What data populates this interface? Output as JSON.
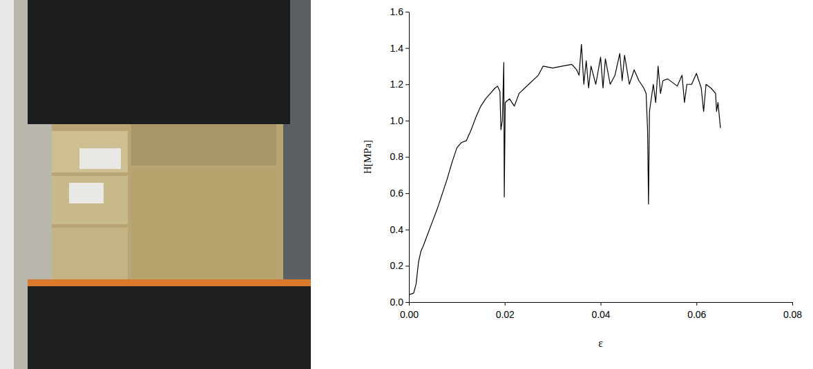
{
  "chart_data": {
    "type": "line",
    "x_label": "ε",
    "y_label": "H[MPa]",
    "x": [
      0.0,
      0.001,
      0.0015,
      0.002,
      0.0025,
      0.003,
      0.004,
      0.005,
      0.006,
      0.007,
      0.008,
      0.009,
      0.01,
      0.011,
      0.012,
      0.013,
      0.014,
      0.015,
      0.016,
      0.017,
      0.018,
      0.0185,
      0.019,
      0.0192,
      0.0195,
      0.0198,
      0.0199,
      0.0201,
      0.021,
      0.022,
      0.023,
      0.025,
      0.027,
      0.028,
      0.03,
      0.032,
      0.034,
      0.035,
      0.0355,
      0.036,
      0.0365,
      0.037,
      0.0375,
      0.038,
      0.039,
      0.04,
      0.0405,
      0.041,
      0.042,
      0.043,
      0.044,
      0.0445,
      0.045,
      0.046,
      0.047,
      0.048,
      0.049,
      0.0495,
      0.0498,
      0.05,
      0.0502,
      0.051,
      0.0515,
      0.052,
      0.0525,
      0.053,
      0.054,
      0.055,
      0.056,
      0.057,
      0.0575,
      0.058,
      0.059,
      0.06,
      0.061,
      0.0615,
      0.062,
      0.063,
      0.064,
      0.0642,
      0.0645,
      0.065
    ],
    "series": [
      {
        "color": "#000000",
        "values": [
          0.04,
          0.05,
          0.1,
          0.22,
          0.28,
          0.31,
          0.38,
          0.45,
          0.52,
          0.6,
          0.68,
          0.77,
          0.85,
          0.88,
          0.89,
          0.95,
          1.02,
          1.08,
          1.12,
          1.15,
          1.18,
          1.19,
          1.16,
          0.95,
          1.0,
          1.32,
          0.58,
          1.1,
          1.12,
          1.08,
          1.15,
          1.2,
          1.25,
          1.3,
          1.29,
          1.3,
          1.31,
          1.28,
          1.25,
          1.42,
          1.2,
          1.33,
          1.18,
          1.3,
          1.2,
          1.35,
          1.18,
          1.34,
          1.2,
          1.25,
          1.37,
          1.22,
          1.36,
          1.2,
          1.28,
          1.22,
          1.18,
          1.15,
          0.95,
          0.54,
          1.05,
          1.2,
          1.1,
          1.3,
          1.15,
          1.22,
          1.23,
          1.21,
          1.19,
          1.25,
          1.1,
          1.2,
          1.2,
          1.26,
          1.18,
          1.05,
          1.2,
          1.18,
          1.15,
          1.05,
          1.1,
          0.96
        ]
      }
    ],
    "xlim": [
      0,
      0.08
    ],
    "xticks": [
      {
        "value": 0,
        "label": "0.00"
      },
      {
        "value": 0.02,
        "label": "0.02"
      },
      {
        "value": 0.04,
        "label": "0.04"
      },
      {
        "value": 0.06,
        "label": "0.06"
      },
      {
        "value": 0.08,
        "label": "0.08"
      }
    ],
    "ylim": [
      0,
      1.6
    ],
    "yticks": [
      {
        "value": 0,
        "label": "0.0"
      },
      0.2,
      0.4,
      0.6,
      0.8,
      {
        "value": 1,
        "label": "1.0"
      },
      1.2,
      1.4,
      1.6
    ],
    "grid": false
  }
}
